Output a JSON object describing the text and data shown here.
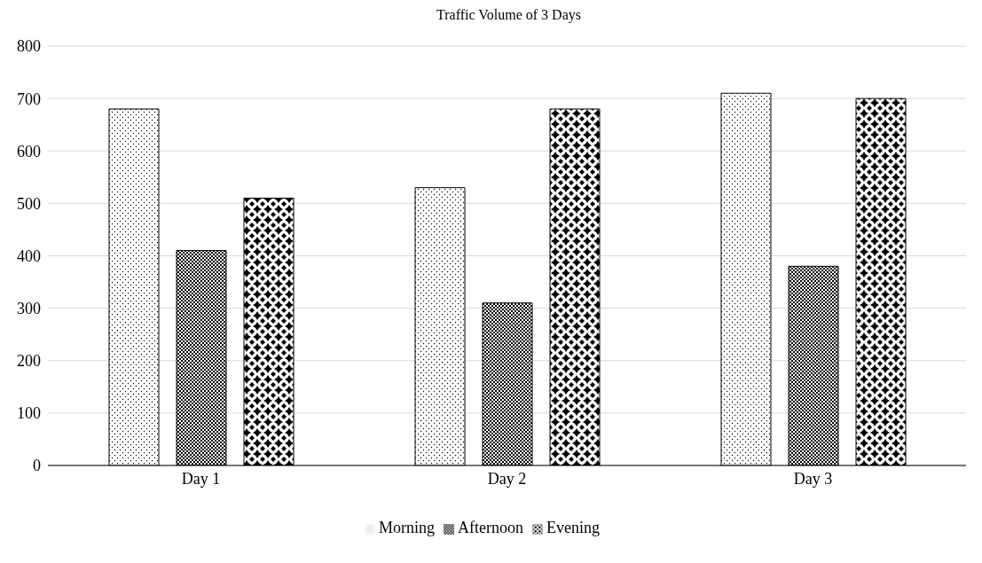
{
  "chart_data": {
    "type": "bar",
    "title": "Traffic Volume of 3 Days",
    "categories": [
      "Day 1",
      "Day 2",
      "Day 3"
    ],
    "series": [
      {
        "name": "Morning",
        "color": "#000000",
        "values": [
          680,
          530,
          710
        ]
      },
      {
        "name": "Afternoon",
        "color": "#000000",
        "values": [
          410,
          310,
          380
        ]
      },
      {
        "name": "Evening",
        "color": "#000000",
        "values": [
          510,
          680,
          700
        ]
      }
    ],
    "ylim": [
      0,
      800
    ],
    "yticks": [
      0,
      100,
      200,
      300,
      400,
      500,
      600,
      700,
      800
    ],
    "grid": "y",
    "legend": "bottom"
  }
}
